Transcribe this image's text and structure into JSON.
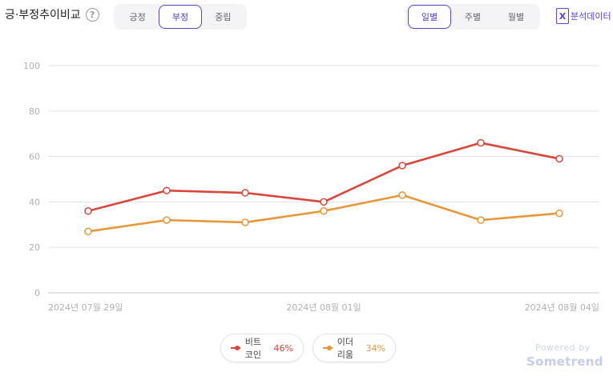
{
  "header": {
    "title": "긍·부정추이비교",
    "help_glyph": "?",
    "sentiment_tabs": [
      {
        "label": "긍정",
        "active": false
      },
      {
        "label": "부정",
        "active": true
      },
      {
        "label": "중립",
        "active": false
      }
    ],
    "period_tabs": [
      {
        "label": "일별",
        "active": true
      },
      {
        "label": "주별",
        "active": false
      },
      {
        "label": "월별",
        "active": false
      }
    ],
    "export_label": "분석데이터",
    "export_icon_glyph": "X"
  },
  "chart_data": {
    "type": "line",
    "title": "",
    "xlabel": "",
    "ylabel": "",
    "ylim": [
      0,
      100
    ],
    "yticks": [
      0,
      20,
      40,
      60,
      80,
      100
    ],
    "x_tick_labels": [
      "2024년 07월 29일",
      "2024년 08월 01일",
      "2024년 08월 04일"
    ],
    "x": [
      "2024-07-29",
      "2024-07-30",
      "2024-07-31",
      "2024-08-01",
      "2024-08-02",
      "2024-08-03",
      "2024-08-04"
    ],
    "grid": true,
    "series": [
      {
        "name": "비트코인",
        "color": "#d9473b",
        "values": [
          36,
          45,
          44,
          40,
          56,
          66,
          59
        ]
      },
      {
        "name": "이더리움",
        "color": "#e8963a",
        "values": [
          27,
          32,
          31,
          36,
          43,
          32,
          35
        ]
      }
    ]
  },
  "legend": [
    {
      "name": "비트코인",
      "percent": "46%",
      "color": "#d9473b"
    },
    {
      "name": "이더리움",
      "percent": "34%",
      "color": "#e8963a"
    }
  ],
  "footer": {
    "powered_by": "Powered by",
    "brand": "Sometrend"
  }
}
